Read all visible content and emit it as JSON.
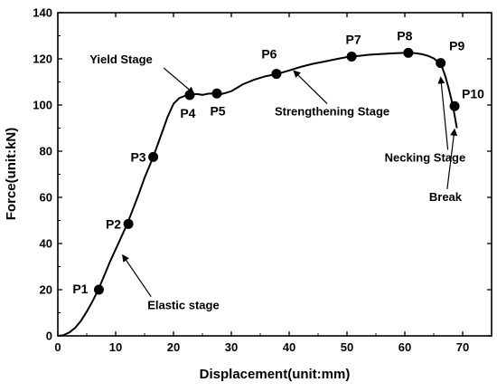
{
  "chart_data": {
    "type": "line",
    "xlabel": "Displacement(unit:mm)",
    "ylabel": "Force(unit:kN)",
    "xlim": [
      0,
      75
    ],
    "ylim": [
      0,
      140
    ],
    "x_ticks": [
      0,
      10,
      20,
      30,
      40,
      50,
      60,
      70
    ],
    "y_ticks": [
      0,
      20,
      40,
      60,
      80,
      100,
      120,
      140
    ],
    "grid": false,
    "line_color": "#000000",
    "curve": {
      "x": [
        0,
        1,
        2,
        3,
        4,
        5,
        6,
        7,
        8,
        9,
        10,
        11,
        12,
        13,
        14,
        15,
        16,
        17,
        18,
        19,
        20,
        21,
        22,
        23,
        24,
        25,
        26,
        27,
        28,
        29,
        30,
        32,
        34,
        36,
        38,
        40,
        42,
        44,
        46,
        48,
        50,
        52,
        54,
        56,
        58,
        60,
        61,
        62,
        63,
        64,
        65,
        66,
        66.5,
        67,
        67.5,
        68,
        68.5,
        69
      ],
      "y": [
        0,
        0.3,
        1.5,
        3.5,
        6.5,
        10.5,
        15,
        20,
        26,
        32,
        37.5,
        43,
        48.5,
        55,
        61.5,
        68.5,
        74.5,
        81,
        88,
        95,
        100.5,
        103,
        104,
        104.3,
        104.8,
        104.4,
        104.9,
        105,
        104.6,
        105.2,
        106,
        109,
        111,
        112.5,
        113.5,
        115,
        116.5,
        117.8,
        118.8,
        119.8,
        120.8,
        121.3,
        121.8,
        122.1,
        122.4,
        122.6,
        122.6,
        122.4,
        122,
        121.3,
        120.2,
        118.2,
        116,
        112.5,
        108,
        103,
        97,
        90
      ]
    },
    "points": [
      {
        "label": "P1",
        "x": 7.1,
        "y": 20
      },
      {
        "label": "P2",
        "x": 12.2,
        "y": 48.5
      },
      {
        "label": "P3",
        "x": 16.5,
        "y": 77.5
      },
      {
        "label": "P4",
        "x": 22.8,
        "y": 104.3
      },
      {
        "label": "P5",
        "x": 27.5,
        "y": 105
      },
      {
        "label": "P6",
        "x": 37.8,
        "y": 113.5
      },
      {
        "label": "P7",
        "x": 50.8,
        "y": 121
      },
      {
        "label": "P8",
        "x": 60.6,
        "y": 122.6
      },
      {
        "label": "P9",
        "x": 66.2,
        "y": 118.2
      },
      {
        "label": "P10",
        "x": 68.6,
        "y": 99.5
      }
    ],
    "annotations": [
      {
        "text": "Yield Stage",
        "target": [
          23.5,
          105
        ],
        "text_at": [
          5.5,
          118
        ]
      },
      {
        "text": "Strengthening Stage",
        "target": [
          40.8,
          114.8
        ],
        "text_at": [
          37.5,
          95.5
        ]
      },
      {
        "text": "Necking Stage",
        "target": [
          66.2,
          112
        ],
        "text_at": [
          56.5,
          75.5
        ]
      },
      {
        "text": "Break",
        "target": [
          68.6,
          89.5
        ],
        "text_at": [
          64.2,
          58.5
        ]
      },
      {
        "text": "Elastic stage",
        "target": [
          11.2,
          35
        ],
        "text_at": [
          15.5,
          11.5
        ]
      }
    ]
  }
}
